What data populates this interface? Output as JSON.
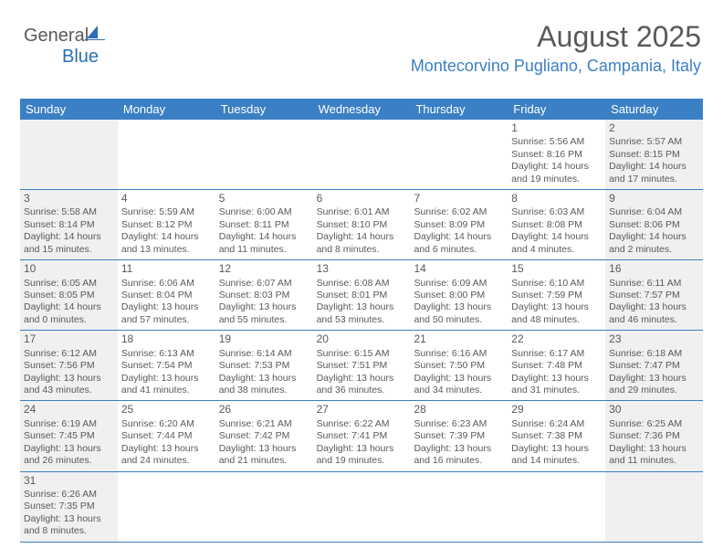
{
  "logo": {
    "text1": "General",
    "text2": "Blue"
  },
  "title": "August 2025",
  "location": "Montecorvino Pugliano, Campania, Italy",
  "colors": {
    "header_bg": "#3b7fc4",
    "header_text": "#ffffff",
    "body_text": "#595959",
    "shade_bg": "#f0f0f0",
    "border": "#3b7fc4",
    "location_text": "#3b7fc4"
  },
  "day_names": [
    "Sunday",
    "Monday",
    "Tuesday",
    "Wednesday",
    "Thursday",
    "Friday",
    "Saturday"
  ],
  "weeks": [
    [
      {
        "num": "",
        "shade": true
      },
      {
        "num": "",
        "shade": false
      },
      {
        "num": "",
        "shade": false
      },
      {
        "num": "",
        "shade": false
      },
      {
        "num": "",
        "shade": false
      },
      {
        "num": "1",
        "shade": false,
        "sunrise": "5:56 AM",
        "sunset": "8:16 PM",
        "daylight": "14 hours and 19 minutes."
      },
      {
        "num": "2",
        "shade": true,
        "sunrise": "5:57 AM",
        "sunset": "8:15 PM",
        "daylight": "14 hours and 17 minutes."
      }
    ],
    [
      {
        "num": "3",
        "shade": true,
        "sunrise": "5:58 AM",
        "sunset": "8:14 PM",
        "daylight": "14 hours and 15 minutes."
      },
      {
        "num": "4",
        "shade": false,
        "sunrise": "5:59 AM",
        "sunset": "8:12 PM",
        "daylight": "14 hours and 13 minutes."
      },
      {
        "num": "5",
        "shade": false,
        "sunrise": "6:00 AM",
        "sunset": "8:11 PM",
        "daylight": "14 hours and 11 minutes."
      },
      {
        "num": "6",
        "shade": false,
        "sunrise": "6:01 AM",
        "sunset": "8:10 PM",
        "daylight": "14 hours and 8 minutes."
      },
      {
        "num": "7",
        "shade": false,
        "sunrise": "6:02 AM",
        "sunset": "8:09 PM",
        "daylight": "14 hours and 6 minutes."
      },
      {
        "num": "8",
        "shade": false,
        "sunrise": "6:03 AM",
        "sunset": "8:08 PM",
        "daylight": "14 hours and 4 minutes."
      },
      {
        "num": "9",
        "shade": true,
        "sunrise": "6:04 AM",
        "sunset": "8:06 PM",
        "daylight": "14 hours and 2 minutes."
      }
    ],
    [
      {
        "num": "10",
        "shade": true,
        "sunrise": "6:05 AM",
        "sunset": "8:05 PM",
        "daylight": "14 hours and 0 minutes."
      },
      {
        "num": "11",
        "shade": false,
        "sunrise": "6:06 AM",
        "sunset": "8:04 PM",
        "daylight": "13 hours and 57 minutes."
      },
      {
        "num": "12",
        "shade": false,
        "sunrise": "6:07 AM",
        "sunset": "8:03 PM",
        "daylight": "13 hours and 55 minutes."
      },
      {
        "num": "13",
        "shade": false,
        "sunrise": "6:08 AM",
        "sunset": "8:01 PM",
        "daylight": "13 hours and 53 minutes."
      },
      {
        "num": "14",
        "shade": false,
        "sunrise": "6:09 AM",
        "sunset": "8:00 PM",
        "daylight": "13 hours and 50 minutes."
      },
      {
        "num": "15",
        "shade": false,
        "sunrise": "6:10 AM",
        "sunset": "7:59 PM",
        "daylight": "13 hours and 48 minutes."
      },
      {
        "num": "16",
        "shade": true,
        "sunrise": "6:11 AM",
        "sunset": "7:57 PM",
        "daylight": "13 hours and 46 minutes."
      }
    ],
    [
      {
        "num": "17",
        "shade": true,
        "sunrise": "6:12 AM",
        "sunset": "7:56 PM",
        "daylight": "13 hours and 43 minutes."
      },
      {
        "num": "18",
        "shade": false,
        "sunrise": "6:13 AM",
        "sunset": "7:54 PM",
        "daylight": "13 hours and 41 minutes."
      },
      {
        "num": "19",
        "shade": false,
        "sunrise": "6:14 AM",
        "sunset": "7:53 PM",
        "daylight": "13 hours and 38 minutes."
      },
      {
        "num": "20",
        "shade": false,
        "sunrise": "6:15 AM",
        "sunset": "7:51 PM",
        "daylight": "13 hours and 36 minutes."
      },
      {
        "num": "21",
        "shade": false,
        "sunrise": "6:16 AM",
        "sunset": "7:50 PM",
        "daylight": "13 hours and 34 minutes."
      },
      {
        "num": "22",
        "shade": false,
        "sunrise": "6:17 AM",
        "sunset": "7:48 PM",
        "daylight": "13 hours and 31 minutes."
      },
      {
        "num": "23",
        "shade": true,
        "sunrise": "6:18 AM",
        "sunset": "7:47 PM",
        "daylight": "13 hours and 29 minutes."
      }
    ],
    [
      {
        "num": "24",
        "shade": true,
        "sunrise": "6:19 AM",
        "sunset": "7:45 PM",
        "daylight": "13 hours and 26 minutes."
      },
      {
        "num": "25",
        "shade": false,
        "sunrise": "6:20 AM",
        "sunset": "7:44 PM",
        "daylight": "13 hours and 24 minutes."
      },
      {
        "num": "26",
        "shade": false,
        "sunrise": "6:21 AM",
        "sunset": "7:42 PM",
        "daylight": "13 hours and 21 minutes."
      },
      {
        "num": "27",
        "shade": false,
        "sunrise": "6:22 AM",
        "sunset": "7:41 PM",
        "daylight": "13 hours and 19 minutes."
      },
      {
        "num": "28",
        "shade": false,
        "sunrise": "6:23 AM",
        "sunset": "7:39 PM",
        "daylight": "13 hours and 16 minutes."
      },
      {
        "num": "29",
        "shade": false,
        "sunrise": "6:24 AM",
        "sunset": "7:38 PM",
        "daylight": "13 hours and 14 minutes."
      },
      {
        "num": "30",
        "shade": true,
        "sunrise": "6:25 AM",
        "sunset": "7:36 PM",
        "daylight": "13 hours and 11 minutes."
      }
    ],
    [
      {
        "num": "31",
        "shade": true,
        "sunrise": "6:26 AM",
        "sunset": "7:35 PM",
        "daylight": "13 hours and 8 minutes."
      },
      {
        "num": "",
        "shade": false
      },
      {
        "num": "",
        "shade": false
      },
      {
        "num": "",
        "shade": false
      },
      {
        "num": "",
        "shade": false
      },
      {
        "num": "",
        "shade": false
      },
      {
        "num": "",
        "shade": true
      }
    ]
  ]
}
